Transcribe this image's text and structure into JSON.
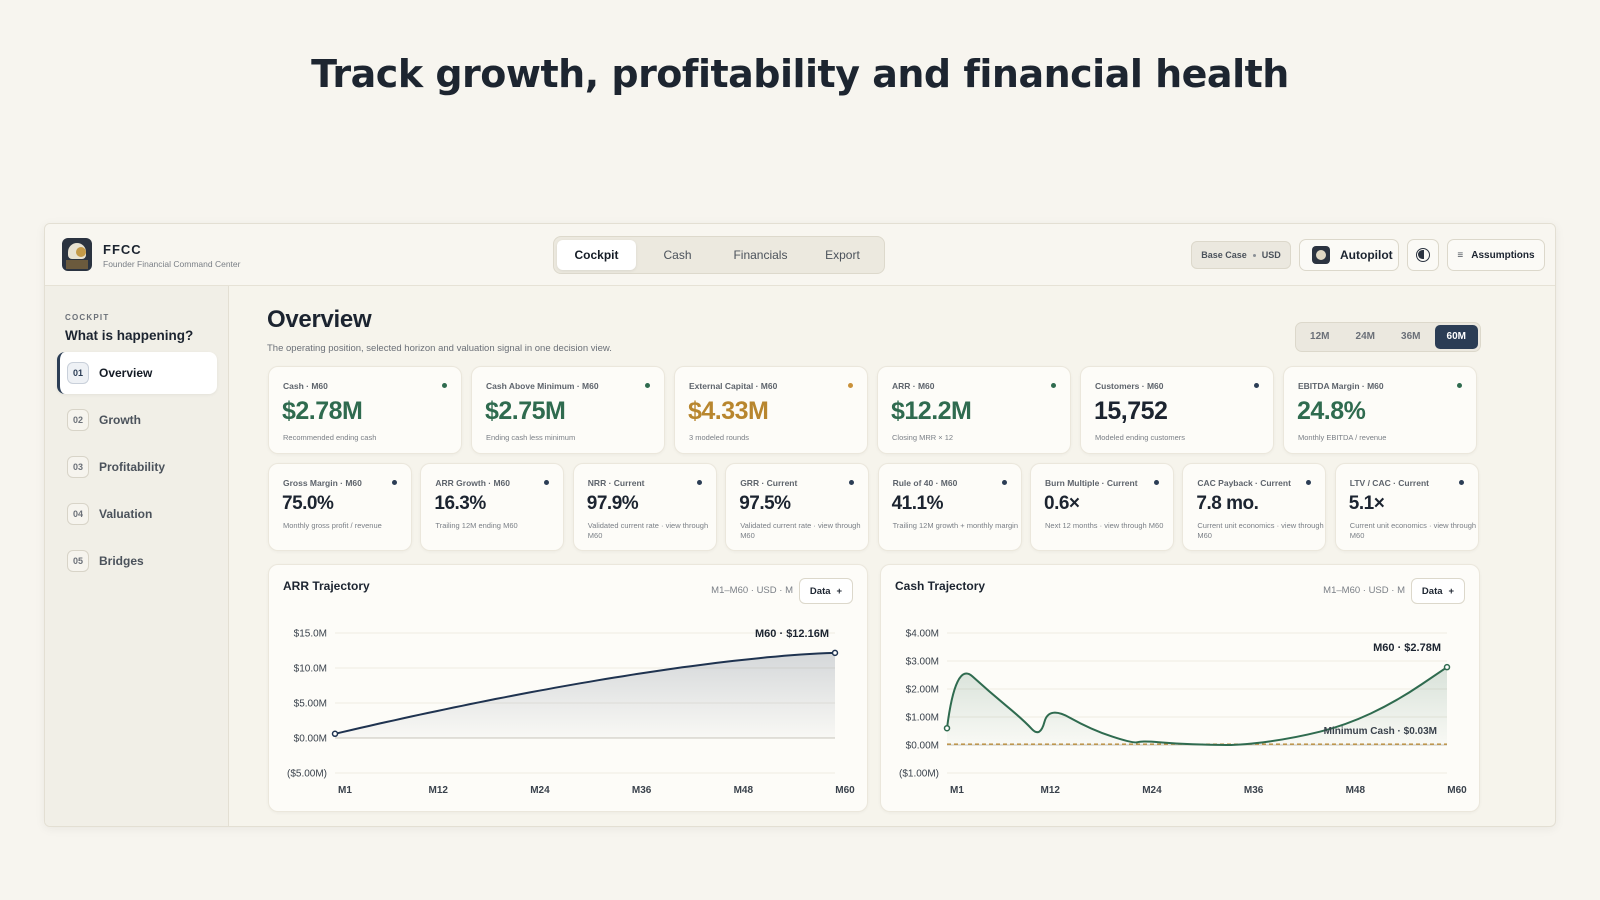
{
  "hero": {
    "title": "Track growth, profitability and financial health"
  },
  "brand": {
    "name": "FFCC",
    "subtitle": "Founder Financial Command Center"
  },
  "tabs": [
    {
      "label": "Cockpit",
      "active": true
    },
    {
      "label": "Cash"
    },
    {
      "label": "Financials"
    },
    {
      "label": "Export"
    }
  ],
  "header": {
    "scenario": "Base Case",
    "currency": "USD",
    "autopilot_label": "Autopilot",
    "theme_icon": "theme-toggle-icon",
    "assumptions_label": "Assumptions",
    "assumptions_icon": "≡"
  },
  "sidebar": {
    "kicker": "COCKPIT",
    "title": "What is happening?",
    "items": [
      {
        "num": "01",
        "label": "Overview",
        "active": true
      },
      {
        "num": "02",
        "label": "Growth"
      },
      {
        "num": "03",
        "label": "Profitability"
      },
      {
        "num": "04",
        "label": "Valuation"
      },
      {
        "num": "05",
        "label": "Bridges"
      }
    ]
  },
  "overview": {
    "title": "Overview",
    "subtitle": "The operating position, selected horizon and valuation signal in one decision view.",
    "horizons": [
      "12M",
      "24M",
      "36M",
      "60M"
    ],
    "active_horizon": "60M"
  },
  "kpis_primary": [
    {
      "label": "Cash · M60",
      "value": "$2.78M",
      "note": "Recommended ending cash",
      "color": "#2f6b4f",
      "dot": "#2f6b4f"
    },
    {
      "label": "Cash Above Minimum · M60",
      "value": "$2.75M",
      "note": "Ending cash less minimum",
      "color": "#2f6b4f",
      "dot": "#2f6b4f"
    },
    {
      "label": "External Capital · M60",
      "value": "$4.33M",
      "note": "3 modeled rounds",
      "color": "#b8862e",
      "dot": "#c9913a"
    },
    {
      "label": "ARR · M60",
      "value": "$12.2M",
      "note": "Closing MRR × 12",
      "color": "#2f6b4f",
      "dot": "#2f6b4f"
    },
    {
      "label": "Customers · M60",
      "value": "15,752",
      "note": "Modeled ending customers",
      "color": "#1c2430",
      "dot": "#2b3d55"
    },
    {
      "label": "EBITDA Margin · M60",
      "value": "24.8%",
      "note": "Monthly EBITDA / revenue",
      "color": "#2f6b4f",
      "dot": "#2f6b4f"
    }
  ],
  "kpis_secondary": [
    {
      "label": "Gross Margin · M60",
      "value": "75.0%",
      "note": "Monthly gross profit / revenue"
    },
    {
      "label": "ARR Growth · M60",
      "value": "16.3%",
      "note": "Trailing 12M ending M60"
    },
    {
      "label": "NRR · Current",
      "value": "97.9%",
      "note": "Validated current rate · view through M60"
    },
    {
      "label": "GRR · Current",
      "value": "97.5%",
      "note": "Validated current rate · view through M60"
    },
    {
      "label": "Rule of 40 · M60",
      "value": "41.1%",
      "note": "Trailing 12M growth + monthly margin"
    },
    {
      "label": "Burn Multiple · Current",
      "value": "0.6×",
      "note": "Next 12 months · view through M60"
    },
    {
      "label": "CAC Payback · Current",
      "value": "7.8 mo.",
      "note": "Current unit economics · view through M60"
    },
    {
      "label": "LTV / CAC · Current",
      "value": "5.1×",
      "note": "Current unit economics · view through M60"
    }
  ],
  "charts": {
    "arr": {
      "title": "ARR Trajectory",
      "meta": "M1–M60 · USD · M",
      "button": "Data",
      "end_label": "M60 · $12.16M"
    },
    "cash": {
      "title": "Cash Trajectory",
      "meta": "M1–M60 · USD · M",
      "button": "Data",
      "end_label": "M60 · $2.78M",
      "min_label": "Minimum Cash · $0.03M"
    }
  },
  "chart_data": [
    {
      "type": "area",
      "title": "ARR Trajectory",
      "x_ticks": [
        "M1",
        "M12",
        "M24",
        "M36",
        "M48",
        "M60"
      ],
      "y_ticks": [
        "$15.0M",
        "$10.0M",
        "$5.00M",
        "$0.00M",
        "($5.00M)"
      ],
      "ylim": [
        -5,
        15
      ],
      "x": [
        1,
        12,
        24,
        36,
        48,
        60
      ],
      "values": [
        0.6,
        3.4,
        5.8,
        8.0,
        10.2,
        12.16
      ],
      "series_color": "#1f3350"
    },
    {
      "type": "area",
      "title": "Cash Trajectory",
      "x_ticks": [
        "M1",
        "M12",
        "M24",
        "M36",
        "M48",
        "M60"
      ],
      "y_ticks": [
        "$4.00M",
        "$3.00M",
        "$2.00M",
        "$1.00M",
        "$0.00M",
        "($1.00M)"
      ],
      "ylim": [
        -1,
        4
      ],
      "x": [
        1,
        2,
        6,
        10,
        12,
        13,
        18,
        23,
        24,
        28,
        32,
        36,
        42,
        48,
        54,
        60
      ],
      "values": [
        0.6,
        3.0,
        1.9,
        0.9,
        0.25,
        1.4,
        0.55,
        0.05,
        0.15,
        0.05,
        0.0,
        0.0,
        0.25,
        0.7,
        1.55,
        2.78
      ],
      "min_cash": 0.03,
      "series_color": "#2f6b4f"
    }
  ]
}
